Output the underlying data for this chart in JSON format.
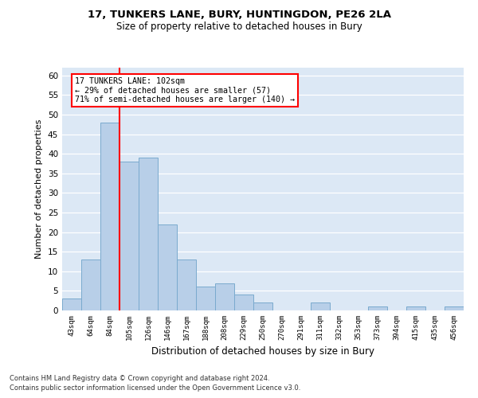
{
  "title1": "17, TUNKERS LANE, BURY, HUNTINGDON, PE26 2LA",
  "title2": "Size of property relative to detached houses in Bury",
  "xlabel": "Distribution of detached houses by size in Bury",
  "ylabel": "Number of detached properties",
  "bar_labels": [
    "43sqm",
    "64sqm",
    "84sqm",
    "105sqm",
    "126sqm",
    "146sqm",
    "167sqm",
    "188sqm",
    "208sqm",
    "229sqm",
    "250sqm",
    "270sqm",
    "291sqm",
    "311sqm",
    "332sqm",
    "353sqm",
    "373sqm",
    "394sqm",
    "415sqm",
    "435sqm",
    "456sqm"
  ],
  "bar_values": [
    3,
    13,
    48,
    38,
    39,
    22,
    13,
    6,
    7,
    4,
    2,
    0,
    0,
    2,
    0,
    0,
    1,
    0,
    1,
    0,
    1
  ],
  "bar_color": "#b8cfe8",
  "bar_edge_color": "#7aaace",
  "vline_color": "red",
  "ylim": [
    0,
    62
  ],
  "yticks": [
    0,
    5,
    10,
    15,
    20,
    25,
    30,
    35,
    40,
    45,
    50,
    55,
    60
  ],
  "annotation_text": "17 TUNKERS LANE: 102sqm\n← 29% of detached houses are smaller (57)\n71% of semi-detached houses are larger (140) →",
  "annotation_box_color": "white",
  "annotation_box_edge": "red",
  "footnote1": "Contains HM Land Registry data © Crown copyright and database right 2024.",
  "footnote2": "Contains public sector information licensed under the Open Government Licence v3.0.",
  "plot_bg_color": "#dce8f5"
}
